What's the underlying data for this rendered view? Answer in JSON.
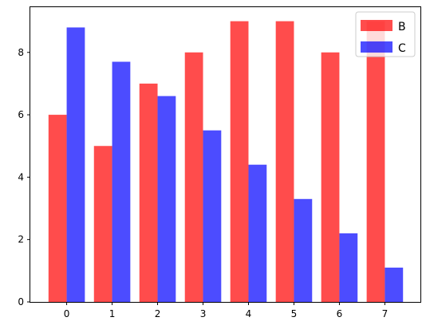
{
  "chart_data": {
    "type": "bar",
    "title": "",
    "xlabel": "",
    "ylabel": "",
    "categories": [
      "0",
      "1",
      "2",
      "3",
      "4",
      "5",
      "6",
      "7"
    ],
    "series": [
      {
        "name": "B",
        "values": [
          6,
          5,
          7,
          8,
          9,
          9,
          8,
          9
        ],
        "color": "#ff0000"
      },
      {
        "name": "C",
        "values": [
          8.8,
          7.7,
          6.6,
          5.5,
          4.4,
          3.3,
          2.2,
          1.1
        ],
        "color": "#0000ff"
      }
    ],
    "opacity": 0.7,
    "ylim": [
      0,
      9.45
    ],
    "yticks": [
      0,
      2,
      4,
      6,
      8
    ],
    "grid": false,
    "legend_position": "top-right"
  }
}
